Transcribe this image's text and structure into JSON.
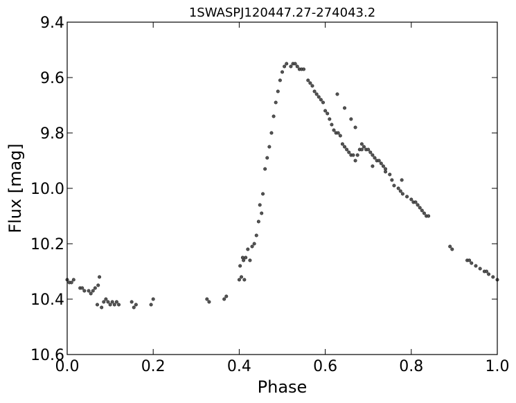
{
  "chart_data": {
    "type": "scatter",
    "title": "1SWASPJ120447.27-274043.2",
    "xlabel": "Phase",
    "ylabel": "Flux [mag]",
    "xlim": [
      0.0,
      1.0
    ],
    "ylim": [
      9.4,
      10.6
    ],
    "y_inverted": true,
    "grid": false,
    "x_ticks": [
      "0.0",
      "0.2",
      "0.4",
      "0.6",
      "0.8",
      "1.0"
    ],
    "y_ticks": [
      "9.4",
      "9.6",
      "9.8",
      "10.0",
      "10.2",
      "10.4",
      "10.6"
    ],
    "marker_color": "#555555",
    "series": [
      {
        "x": [
          0.0,
          0.005,
          0.01,
          0.015,
          0.03,
          0.035,
          0.04,
          0.05,
          0.055,
          0.06,
          0.065,
          0.07,
          0.072,
          0.075,
          0.08,
          0.085,
          0.09,
          0.095,
          0.1,
          0.105,
          0.11,
          0.115,
          0.12,
          0.15,
          0.155,
          0.16,
          0.195,
          0.2,
          0.325,
          0.33,
          0.365,
          0.37,
          0.4,
          0.402,
          0.405,
          0.408,
          0.41,
          0.412,
          0.415,
          0.42,
          0.425,
          0.43,
          0.435,
          0.44,
          0.445,
          0.448,
          0.452,
          0.455,
          0.46,
          0.465,
          0.47,
          0.475,
          0.48,
          0.485,
          0.49,
          0.495,
          0.5,
          0.505,
          0.51,
          0.52,
          0.525,
          0.53,
          0.535,
          0.54,
          0.545,
          0.55,
          0.56,
          0.565,
          0.57,
          0.575,
          0.58,
          0.585,
          0.59,
          0.595,
          0.6,
          0.605,
          0.61,
          0.615,
          0.62,
          0.625,
          0.63,
          0.635,
          0.64,
          0.645,
          0.65,
          0.655,
          0.66,
          0.665,
          0.67,
          0.675,
          0.68,
          0.685,
          0.69,
          0.695,
          0.7,
          0.705,
          0.71,
          0.715,
          0.72,
          0.725,
          0.73,
          0.735,
          0.74,
          0.75,
          0.755,
          0.76,
          0.77,
          0.775,
          0.78,
          0.79,
          0.8,
          0.805,
          0.81,
          0.815,
          0.82,
          0.825,
          0.83,
          0.835,
          0.84,
          0.89,
          0.895,
          0.93,
          0.935,
          0.94,
          0.95,
          0.96,
          0.97,
          0.975,
          0.98,
          0.99,
          1.0,
          0.628,
          0.645,
          0.66,
          0.67,
          0.685,
          0.71,
          0.74,
          0.778
        ],
        "y": [
          10.33,
          10.34,
          10.34,
          10.33,
          10.36,
          10.36,
          10.37,
          10.37,
          10.38,
          10.37,
          10.36,
          10.42,
          10.35,
          10.32,
          10.43,
          10.41,
          10.4,
          10.41,
          10.42,
          10.41,
          10.42,
          10.41,
          10.42,
          10.41,
          10.43,
          10.42,
          10.42,
          10.4,
          10.4,
          10.41,
          10.4,
          10.39,
          10.33,
          10.28,
          10.32,
          10.25,
          10.26,
          10.33,
          10.25,
          10.22,
          10.26,
          10.21,
          10.2,
          10.17,
          10.12,
          10.06,
          10.09,
          10.02,
          9.93,
          9.89,
          9.85,
          9.8,
          9.74,
          9.69,
          9.65,
          9.61,
          9.58,
          9.56,
          9.55,
          9.56,
          9.55,
          9.55,
          9.56,
          9.57,
          9.57,
          9.57,
          9.61,
          9.62,
          9.63,
          9.65,
          9.66,
          9.67,
          9.68,
          9.69,
          9.72,
          9.73,
          9.75,
          9.77,
          9.79,
          9.8,
          9.8,
          9.81,
          9.84,
          9.85,
          9.86,
          9.87,
          9.88,
          9.88,
          9.9,
          9.88,
          9.86,
          9.86,
          9.85,
          9.86,
          9.86,
          9.87,
          9.88,
          9.89,
          9.9,
          9.9,
          9.91,
          9.92,
          9.93,
          9.95,
          9.97,
          9.99,
          10.0,
          10.01,
          10.02,
          10.03,
          10.04,
          10.05,
          10.05,
          10.06,
          10.07,
          10.08,
          10.09,
          10.1,
          10.1,
          10.21,
          10.22,
          10.26,
          10.26,
          10.27,
          10.28,
          10.29,
          10.3,
          10.3,
          10.31,
          10.32,
          10.33,
          9.66,
          9.71,
          9.75,
          9.78,
          9.84,
          9.92,
          9.94,
          9.97
        ]
      }
    ]
  }
}
